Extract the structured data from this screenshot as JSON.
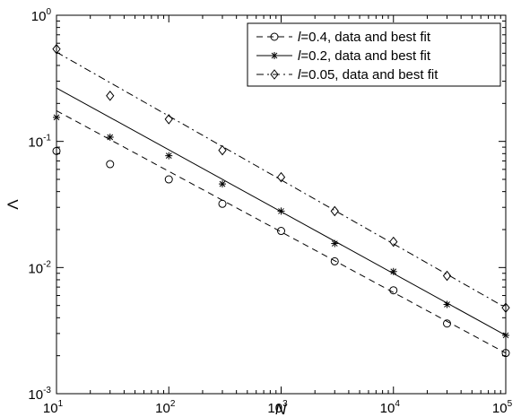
{
  "chart_data": {
    "type": "scatter",
    "title": "",
    "xlabel": "N",
    "ylabel": "Λ",
    "xscale": "log",
    "yscale": "log",
    "xlim": [
      10,
      100000
    ],
    "ylim": [
      0.001,
      1
    ],
    "grid": false,
    "legend_position": "top-right",
    "x_ticks": [
      {
        "base": "10",
        "exp": "1"
      },
      {
        "base": "10",
        "exp": "2"
      },
      {
        "base": "10",
        "exp": "3"
      },
      {
        "base": "10",
        "exp": "4"
      },
      {
        "base": "10",
        "exp": "5"
      }
    ],
    "y_ticks": [
      {
        "base": "10",
        "exp": "-3"
      },
      {
        "base": "10",
        "exp": "-2"
      },
      {
        "base": "10",
        "exp": "-1"
      },
      {
        "base": "10",
        "exp": "0"
      }
    ],
    "series": [
      {
        "name": "l=0.4, data and best fit",
        "label_italic": "l",
        "label_rest": "=0.4, data and best fit",
        "marker": "circle",
        "line_style": "dashed",
        "x": [
          10,
          30,
          100,
          300,
          1000,
          3000,
          10000,
          30000,
          100000
        ],
        "y": [
          0.084,
          0.066,
          0.05,
          0.032,
          0.0195,
          0.0112,
          0.0066,
          0.0036,
          0.0021
        ],
        "fit": {
          "x": [
            10,
            100000
          ],
          "y": [
            0.175,
            0.0021
          ]
        }
      },
      {
        "name": "l=0.2, data and best fit",
        "label_italic": "l",
        "label_rest": "=0.2, data and best fit",
        "marker": "asterisk",
        "line_style": "solid",
        "x": [
          10,
          30,
          100,
          300,
          1000,
          3000,
          10000,
          30000,
          100000
        ],
        "y": [
          0.155,
          0.108,
          0.077,
          0.046,
          0.028,
          0.0155,
          0.0093,
          0.0051,
          0.0029
        ],
        "fit": {
          "x": [
            10,
            100000
          ],
          "y": [
            0.265,
            0.0029
          ]
        }
      },
      {
        "name": "l=0.05, data and best fit",
        "label_italic": "l",
        "label_rest": "=0.05, data and best fit",
        "marker": "diamond",
        "line_style": "dashdot",
        "x": [
          10,
          30,
          100,
          300,
          1000,
          3000,
          10000,
          30000,
          100000
        ],
        "y": [
          0.54,
          0.23,
          0.15,
          0.085,
          0.052,
          0.028,
          0.016,
          0.0086,
          0.0048
        ],
        "fit": {
          "x": [
            10,
            100000
          ],
          "y": [
            0.51,
            0.0048
          ]
        }
      }
    ]
  }
}
